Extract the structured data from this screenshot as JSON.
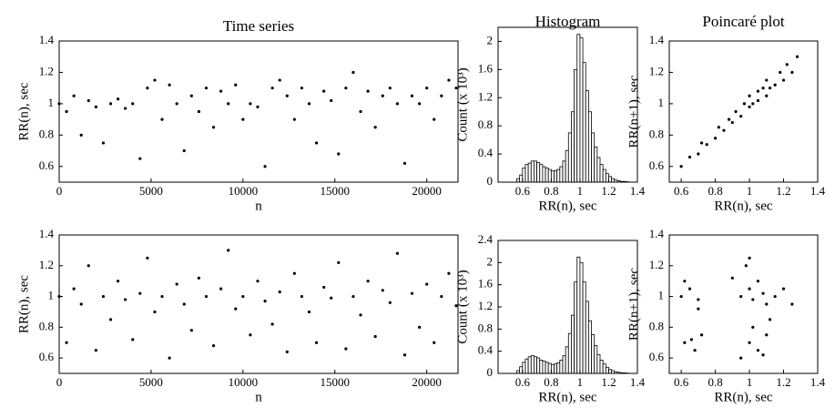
{
  "chart_data": [
    {
      "type": "scatter",
      "title": "Time series",
      "xlabel": "n",
      "ylabel": "RR(n), sec",
      "color": "#000000",
      "x": [
        0,
        400,
        800,
        1200,
        1600,
        2000,
        2400,
        2800,
        3200,
        3600,
        4000,
        4400,
        4800,
        5200,
        5600,
        6000,
        6400,
        6800,
        7200,
        7600,
        8000,
        8400,
        8800,
        9200,
        9600,
        10000,
        10400,
        10800,
        11200,
        11600,
        12000,
        12400,
        12800,
        13200,
        13600,
        14000,
        14400,
        14800,
        15200,
        15600,
        16000,
        16400,
        16800,
        17200,
        17600,
        18000,
        18400,
        18800,
        19200,
        19600,
        20000,
        20400,
        20800,
        21200,
        21600
      ],
      "values": [
        1.0,
        0.95,
        1.05,
        0.8,
        1.02,
        0.98,
        0.75,
        1.0,
        1.03,
        0.97,
        1.0,
        0.65,
        1.1,
        1.15,
        0.9,
        1.12,
        1.0,
        0.7,
        1.05,
        0.95,
        1.1,
        0.85,
        1.08,
        1.0,
        1.12,
        0.9,
        1.0,
        0.98,
        0.6,
        1.1,
        1.15,
        1.05,
        0.9,
        1.1,
        1.0,
        0.75,
        1.08,
        1.02,
        0.68,
        1.1,
        1.2,
        0.95,
        1.08,
        0.85,
        1.05,
        1.1,
        1.0,
        0.62,
        1.05,
        1.0,
        1.1,
        0.9,
        1.05,
        1.15,
        1.1
      ],
      "xlim": [
        0,
        21700
      ],
      "ylim": [
        0.5,
        1.4
      ],
      "xticks": [
        0,
        5000,
        10000,
        15000,
        20000
      ],
      "yticks": [
        0.6,
        0.8,
        1,
        1.2,
        1.4
      ]
    },
    {
      "type": "histogram",
      "title": "Histogram",
      "xlabel": "RR(n), sec",
      "ylabel": "Count (x 10³)",
      "color": "#000000",
      "bins": [
        0.56,
        0.58,
        0.6,
        0.62,
        0.64,
        0.66,
        0.68,
        0.7,
        0.72,
        0.74,
        0.76,
        0.78,
        0.8,
        0.82,
        0.84,
        0.86,
        0.88,
        0.9,
        0.92,
        0.94,
        0.96,
        0.98,
        1.0,
        1.02,
        1.04,
        1.06,
        1.08,
        1.1,
        1.12,
        1.14,
        1.16,
        1.18,
        1.2,
        1.22,
        1.24,
        1.26,
        1.28,
        1.3,
        1.32,
        1.34
      ],
      "values": [
        0.05,
        0.1,
        0.2,
        0.25,
        0.27,
        0.3,
        0.3,
        0.28,
        0.25,
        0.22,
        0.2,
        0.18,
        0.16,
        0.16,
        0.18,
        0.22,
        0.3,
        0.45,
        0.7,
        1.0,
        1.6,
        2.1,
        2.05,
        1.7,
        1.3,
        1.0,
        0.7,
        0.5,
        0.35,
        0.25,
        0.18,
        0.12,
        0.08,
        0.05,
        0.03,
        0.02,
        0.01,
        0.01,
        0.005
      ],
      "xlim": [
        0.43,
        1.4
      ],
      "ylim": [
        0,
        2.2
      ],
      "xticks": [
        0.6,
        0.8,
        1,
        1.2,
        1.4
      ],
      "yticks": [
        0,
        0.4,
        0.8,
        1.2,
        1.6,
        2
      ]
    },
    {
      "type": "scatter",
      "title": "Poincaré plot",
      "xlabel": "RR(n), sec",
      "ylabel": "RR(n+1), sec",
      "color": "#000000",
      "x": [
        0.6,
        0.65,
        0.7,
        0.72,
        0.75,
        0.8,
        0.82,
        0.85,
        0.88,
        0.9,
        0.92,
        0.95,
        0.97,
        1.0,
        1.0,
        1.02,
        1.05,
        1.05,
        1.08,
        1.1,
        1.1,
        1.12,
        1.15,
        1.18,
        1.2,
        1.22,
        1.25,
        1.28
      ],
      "values": [
        0.6,
        0.66,
        0.68,
        0.75,
        0.74,
        0.78,
        0.85,
        0.83,
        0.9,
        0.88,
        0.95,
        0.92,
        1.0,
        0.98,
        1.05,
        1.0,
        1.08,
        1.02,
        1.1,
        1.05,
        1.15,
        1.1,
        1.12,
        1.2,
        1.15,
        1.25,
        1.2,
        1.3
      ],
      "xlim": [
        0.53,
        1.4
      ],
      "ylim": [
        0.5,
        1.4
      ],
      "xticks": [
        0.6,
        0.8,
        1,
        1.2,
        1.4
      ],
      "yticks": [
        0.6,
        0.8,
        1,
        1.2,
        1.4
      ]
    },
    {
      "type": "scatter",
      "xlabel": "n",
      "ylabel": "RR(n), sec",
      "color": "#000000",
      "x": [
        0,
        400,
        800,
        1200,
        1600,
        2000,
        2400,
        2800,
        3200,
        3600,
        4000,
        4400,
        4800,
        5200,
        5600,
        6000,
        6400,
        6800,
        7200,
        7600,
        8000,
        8400,
        8800,
        9200,
        9600,
        10000,
        10400,
        10800,
        11200,
        11600,
        12000,
        12400,
        12800,
        13200,
        13600,
        14000,
        14400,
        14800,
        15200,
        15600,
        16000,
        16400,
        16800,
        17200,
        17600,
        18000,
        18400,
        18800,
        19200,
        19600,
        20000,
        20400,
        20800,
        21200,
        21600
      ],
      "values": [
        1.0,
        0.7,
        1.05,
        0.95,
        1.2,
        0.65,
        1.0,
        0.85,
        1.1,
        0.98,
        0.72,
        1.02,
        1.25,
        0.9,
        1.0,
        0.6,
        1.08,
        0.95,
        0.78,
        1.12,
        1.0,
        0.68,
        1.05,
        1.3,
        0.92,
        1.0,
        0.75,
        1.1,
        0.97,
        0.82,
        1.03,
        0.64,
        1.15,
        1.0,
        0.9,
        0.7,
        1.06,
        0.99,
        1.22,
        0.66,
        1.0,
        0.88,
        1.1,
        0.74,
        1.04,
        0.96,
        1.28,
        0.62,
        1.02,
        0.8,
        1.08,
        0.7,
        1.0,
        1.15,
        0.94
      ],
      "xlim": [
        0,
        21700
      ],
      "ylim": [
        0.5,
        1.4
      ],
      "xticks": [
        0,
        5000,
        10000,
        15000,
        20000
      ],
      "yticks": [
        0.6,
        0.8,
        1,
        1.2,
        1.4
      ]
    },
    {
      "type": "histogram",
      "xlabel": "RR(n), sec",
      "ylabel": "Count (x 10³)",
      "color": "#000000",
      "bins": [
        0.56,
        0.58,
        0.6,
        0.62,
        0.64,
        0.66,
        0.68,
        0.7,
        0.72,
        0.74,
        0.76,
        0.78,
        0.8,
        0.82,
        0.84,
        0.86,
        0.88,
        0.9,
        0.92,
        0.94,
        0.96,
        0.98,
        1.0,
        1.02,
        1.04,
        1.06,
        1.08,
        1.1,
        1.12,
        1.14,
        1.16,
        1.18,
        1.2,
        1.22,
        1.24,
        1.26,
        1.28,
        1.3,
        1.32,
        1.34
      ],
      "values": [
        0.05,
        0.12,
        0.2,
        0.26,
        0.3,
        0.32,
        0.3,
        0.28,
        0.24,
        0.22,
        0.2,
        0.18,
        0.16,
        0.17,
        0.19,
        0.24,
        0.32,
        0.48,
        0.72,
        1.05,
        1.65,
        2.1,
        2.0,
        1.65,
        1.3,
        0.95,
        0.7,
        0.5,
        0.34,
        0.24,
        0.17,
        0.11,
        0.07,
        0.05,
        0.03,
        0.02,
        0.01,
        0.01,
        0.005
      ],
      "xlim": [
        0.43,
        1.4
      ],
      "ylim": [
        0,
        2.4
      ],
      "xticks": [
        0.6,
        0.8,
        1,
        1.2,
        1.4
      ],
      "yticks": [
        0,
        0.4,
        0.8,
        1.2,
        1.6,
        2,
        2.4
      ]
    },
    {
      "type": "scatter",
      "xlabel": "RR(n), sec",
      "ylabel": "RR(n+1), sec",
      "color": "#000000",
      "x": [
        0.6,
        0.65,
        0.7,
        0.62,
        0.68,
        0.72,
        0.95,
        1.0,
        1.05,
        1.1,
        0.98,
        1.02,
        1.08,
        1.15,
        1.2,
        1.0,
        1.05,
        1.1,
        0.95,
        1.02,
        0.62,
        0.7,
        0.66,
        1.0,
        1.08,
        1.25,
        0.9,
        1.12
      ],
      "values": [
        1.0,
        1.05,
        0.98,
        0.7,
        0.65,
        0.75,
        1.0,
        1.05,
        1.1,
        0.95,
        1.2,
        0.98,
        1.02,
        1.0,
        1.05,
        0.7,
        0.65,
        0.75,
        0.6,
        0.8,
        1.1,
        0.92,
        0.72,
        1.25,
        0.62,
        0.95,
        1.12,
        0.85
      ],
      "xlim": [
        0.53,
        1.4
      ],
      "ylim": [
        0.5,
        1.4
      ],
      "xticks": [
        0.6,
        0.8,
        1,
        1.2,
        1.4
      ],
      "yticks": [
        0.6,
        0.8,
        1,
        1.2,
        1.4
      ]
    }
  ]
}
